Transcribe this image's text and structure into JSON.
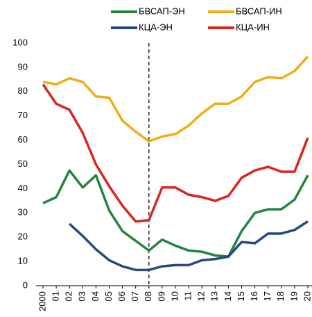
{
  "chart_data": {
    "type": "line",
    "categories": [
      "2000",
      "01",
      "02",
      "03",
      "04",
      "05",
      "06",
      "07",
      "08",
      "09",
      "10",
      "11",
      "12",
      "13",
      "14",
      "15",
      "16",
      "17",
      "18",
      "19",
      "20"
    ],
    "series": [
      {
        "name": "БВСАП-ЭН",
        "color": "#23843d",
        "values": [
          34,
          36.5,
          47.5,
          40.5,
          45.5,
          31,
          22.5,
          18.5,
          14.5,
          19,
          16.5,
          14.5,
          14,
          12.5,
          12,
          22.5,
          30,
          31.5,
          31.5,
          35.5,
          45.5
        ]
      },
      {
        "name": "БВСАП-ИН",
        "color": "#f2ac14",
        "values": [
          84,
          83,
          85.5,
          84,
          78,
          77.5,
          68,
          63.5,
          59.5,
          61.5,
          62.5,
          66,
          71,
          75,
          75,
          78,
          84,
          86,
          85.5,
          88.5,
          94.5
        ]
      },
      {
        "name": "КЦА-ЭН",
        "color": "#26497e",
        "values": [
          null,
          null,
          25.5,
          20.5,
          15,
          10.5,
          8,
          6.5,
          6.5,
          8,
          8.5,
          8.5,
          10.5,
          11,
          12,
          18,
          17.5,
          21.5,
          21.5,
          23,
          26.5
        ]
      },
      {
        "name": "КЦА-ИН",
        "color": "#d9251d",
        "values": [
          83,
          75,
          72.5,
          63,
          50,
          41,
          33,
          26.5,
          27,
          40.5,
          40.5,
          37.5,
          36.5,
          35,
          37,
          44.5,
          47.5,
          49,
          47,
          47,
          61
        ]
      }
    ],
    "reference_line": "08",
    "ylim": [
      0,
      100
    ],
    "yticks": [
      0,
      10,
      20,
      30,
      40,
      50,
      60,
      70,
      80,
      90,
      100
    ]
  }
}
